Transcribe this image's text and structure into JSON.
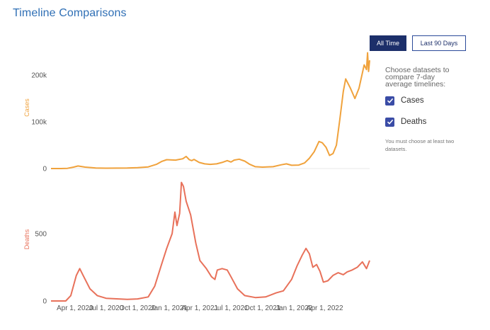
{
  "page": {
    "title": "Timeline Comparisons"
  },
  "buttons": {
    "all_time": "All Time",
    "last_90": "Last 90 Days"
  },
  "panel": {
    "heading": "Choose datasets to compare 7-day average timelines:",
    "options": [
      {
        "label": "Cases",
        "checked": true
      },
      {
        "label": "Deaths",
        "checked": true
      }
    ],
    "note": "You must choose at least two datasets."
  },
  "colors": {
    "cases": "#f0a23c",
    "deaths": "#e8715a",
    "accent": "#1c2f6a",
    "title": "#2f6fb5"
  },
  "chart_data": [
    {
      "type": "line",
      "ylabel": "Cases",
      "ylim": [
        0,
        270000
      ],
      "yticks": [
        0,
        100000,
        200000
      ],
      "ytick_labels": [
        "0",
        "100k",
        "200k"
      ],
      "grid": false,
      "series": [
        {
          "name": "Cases",
          "points": [
            [
              "2020-01-22",
              0
            ],
            [
              "2020-02-20",
              0
            ],
            [
              "2020-03-10",
              500
            ],
            [
              "2020-03-28",
              3000
            ],
            [
              "2020-04-10",
              5500
            ],
            [
              "2020-05-01",
              3000
            ],
            [
              "2020-06-01",
              1200
            ],
            [
              "2020-07-01",
              800
            ],
            [
              "2020-09-01",
              1000
            ],
            [
              "2020-10-01",
              1800
            ],
            [
              "2020-11-01",
              3500
            ],
            [
              "2020-11-25",
              9000
            ],
            [
              "2020-12-10",
              15000
            ],
            [
              "2020-12-25",
              19000
            ],
            [
              "2021-01-20",
              18000
            ],
            [
              "2021-02-10",
              21000
            ],
            [
              "2021-02-20",
              26000
            ],
            [
              "2021-03-01",
              19000
            ],
            [
              "2021-03-08",
              17000
            ],
            [
              "2021-03-15",
              19500
            ],
            [
              "2021-03-30",
              13000
            ],
            [
              "2021-04-15",
              10000
            ],
            [
              "2021-05-01",
              9000
            ],
            [
              "2021-05-20",
              10000
            ],
            [
              "2021-06-05",
              13000
            ],
            [
              "2021-06-20",
              17000
            ],
            [
              "2021-07-01",
              14000
            ],
            [
              "2021-07-10",
              18000
            ],
            [
              "2021-07-25",
              20000
            ],
            [
              "2021-08-10",
              16000
            ],
            [
              "2021-08-25",
              9000
            ],
            [
              "2021-09-10",
              4000
            ],
            [
              "2021-10-01",
              3000
            ],
            [
              "2021-11-01",
              4000
            ],
            [
              "2021-11-25",
              8000
            ],
            [
              "2021-12-10",
              10000
            ],
            [
              "2021-12-25",
              7000
            ],
            [
              "2022-01-15",
              7500
            ],
            [
              "2022-02-01",
              12000
            ],
            [
              "2022-02-15",
              22000
            ],
            [
              "2022-03-01",
              36000
            ],
            [
              "2022-03-15",
              58000
            ],
            [
              "2022-03-25",
              55000
            ],
            [
              "2022-04-05",
              45000
            ],
            [
              "2022-04-15",
              28000
            ],
            [
              "2022-04-25",
              32000
            ],
            [
              "2022-05-05",
              50000
            ],
            [
              "2022-05-15",
              105000
            ],
            [
              "2022-05-25",
              165000
            ],
            [
              "2022-06-01",
              192000
            ],
            [
              "2022-06-15",
              172000
            ],
            [
              "2022-06-28",
              150000
            ],
            [
              "2022-07-10",
              172000
            ],
            [
              "2022-07-25",
              222000
            ],
            [
              "2022-08-01",
              212000
            ],
            [
              "2022-08-04",
              248000
            ],
            [
              "2022-08-07",
              208000
            ],
            [
              "2022-08-10",
              232000
            ]
          ]
        }
      ]
    },
    {
      "type": "line",
      "ylabel": "Deaths",
      "ylim": [
        0,
        920
      ],
      "yticks": [
        0,
        500
      ],
      "ytick_labels": [
        "0",
        "500"
      ],
      "xticks": [
        "2020-04-01",
        "2020-07-01",
        "2020-10-01",
        "2021-01-01",
        "2021-04-01",
        "2021-07-01",
        "2021-10-01",
        "2022-01-01",
        "2022-04-01"
      ],
      "xtick_labels": [
        "Apr 1, 2020",
        "Jul 1, 2020",
        "Oct 1, 2020",
        "Jan 1, 2021",
        "Apr 1, 2021",
        "Jul 1, 2021",
        "Oct 1, 2021",
        "Jan 1, 2022",
        "Apr 1, 2022"
      ],
      "grid": false,
      "series": [
        {
          "name": "Deaths",
          "points": [
            [
              "2020-01-22",
              0
            ],
            [
              "2020-03-05",
              0
            ],
            [
              "2020-03-20",
              40
            ],
            [
              "2020-04-05",
              190
            ],
            [
              "2020-04-15",
              240
            ],
            [
              "2020-04-25",
              190
            ],
            [
              "2020-05-15",
              90
            ],
            [
              "2020-06-05",
              40
            ],
            [
              "2020-07-01",
              20
            ],
            [
              "2020-09-01",
              12
            ],
            [
              "2020-10-01",
              15
            ],
            [
              "2020-11-01",
              30
            ],
            [
              "2020-11-20",
              110
            ],
            [
              "2020-12-10",
              270
            ],
            [
              "2020-12-25",
              390
            ],
            [
              "2021-01-10",
              500
            ],
            [
              "2021-01-18",
              660
            ],
            [
              "2021-01-24",
              560
            ],
            [
              "2021-02-01",
              650
            ],
            [
              "2021-02-06",
              880
            ],
            [
              "2021-02-12",
              850
            ],
            [
              "2021-02-20",
              740
            ],
            [
              "2021-03-05",
              640
            ],
            [
              "2021-03-20",
              430
            ],
            [
              "2021-04-01",
              300
            ],
            [
              "2021-04-20",
              240
            ],
            [
              "2021-05-05",
              180
            ],
            [
              "2021-05-15",
              160
            ],
            [
              "2021-05-22",
              230
            ],
            [
              "2021-06-05",
              240
            ],
            [
              "2021-06-20",
              230
            ],
            [
              "2021-07-01",
              180
            ],
            [
              "2021-07-20",
              90
            ],
            [
              "2021-08-10",
              40
            ],
            [
              "2021-09-10",
              25
            ],
            [
              "2021-10-10",
              30
            ],
            [
              "2021-11-10",
              60
            ],
            [
              "2021-12-01",
              75
            ],
            [
              "2021-12-25",
              160
            ],
            [
              "2022-01-10",
              260
            ],
            [
              "2022-01-25",
              340
            ],
            [
              "2022-02-05",
              390
            ],
            [
              "2022-02-15",
              350
            ],
            [
              "2022-02-25",
              250
            ],
            [
              "2022-03-08",
              270
            ],
            [
              "2022-03-18",
              220
            ],
            [
              "2022-03-28",
              140
            ],
            [
              "2022-04-10",
              150
            ],
            [
              "2022-04-25",
              190
            ],
            [
              "2022-05-10",
              210
            ],
            [
              "2022-05-25",
              195
            ],
            [
              "2022-06-05",
              215
            ],
            [
              "2022-06-20",
              230
            ],
            [
              "2022-07-05",
              250
            ],
            [
              "2022-07-20",
              290
            ],
            [
              "2022-08-01",
              240
            ],
            [
              "2022-08-10",
              300
            ]
          ]
        }
      ]
    }
  ]
}
